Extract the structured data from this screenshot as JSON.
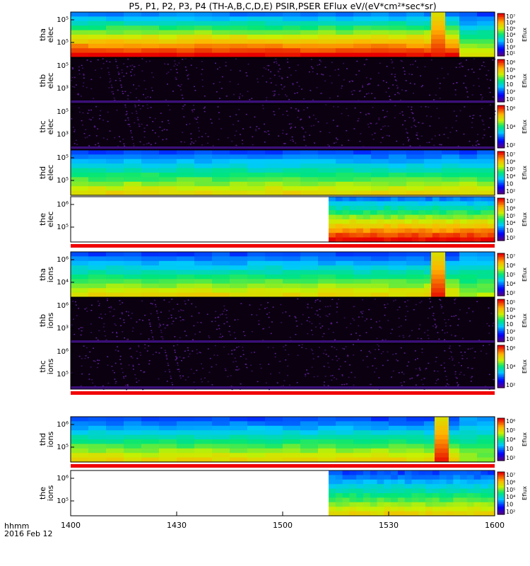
{
  "title": "P5, P1, P2, P3, P4 (TH-A,B,C,D,E) PSIR,PSER EFlux eV/(eV*cm²*sec*sr)",
  "footer": {
    "time_format": "hhmm",
    "date": "2016 Feb 12"
  },
  "chart_data": {
    "type": "heatmap",
    "x_ticks": [
      "1400",
      "1430",
      "1500",
      "1530",
      "1600"
    ],
    "x_range": [
      "14:00",
      "16:00"
    ],
    "colorbar_label": "Eflux",
    "panels": [
      {
        "id": "tha-elec",
        "ylabel": [
          "tha",
          "elec"
        ],
        "yticks": [
          "10⁵",
          "10⁵"
        ],
        "cbar_ticks": [
          "10⁷",
          "10⁶",
          "10⁵",
          "10⁴",
          "10⁳",
          "10²",
          "10¹"
        ],
        "pattern": "high",
        "data_start_min": 0,
        "data_end_min": 120,
        "burst_min": [
          102,
          106
        ],
        "change_min": 106,
        "after": "mid",
        "strip": "yellow"
      },
      {
        "id": "thb-elec",
        "ylabel": [
          "thb",
          "elec"
        ],
        "yticks": [
          "10⁵",
          "10³"
        ],
        "cbar_ticks": [
          "10⁶",
          "10⁵",
          "10⁴",
          "10⁳",
          "10²",
          "10¹"
        ],
        "pattern": "noise",
        "data_start_min": 0,
        "data_end_min": 120
      },
      {
        "id": "thc-elec",
        "ylabel": [
          "thc",
          "elec"
        ],
        "yticks": [
          "10⁵",
          "10³"
        ],
        "cbar_ticks": [
          "10⁶",
          "10⁴",
          "10²"
        ],
        "pattern": "noise",
        "data_start_min": 0,
        "data_end_min": 120
      },
      {
        "id": "thd-elec",
        "ylabel": [
          "thd",
          "elec"
        ],
        "yticks": [
          "10⁵",
          "10⁵"
        ],
        "cbar_ticks": [
          "10⁷",
          "10⁶",
          "10⁵",
          "10⁴",
          "10⁳",
          "10²"
        ],
        "pattern": "mid",
        "data_start_min": 0,
        "data_end_min": 120,
        "burst_min": [
          154,
          158
        ],
        "change_min": 158,
        "after": "low"
      },
      {
        "id": "the-elec",
        "ylabel": [
          "the",
          "elec"
        ],
        "yticks": [
          "10⁶",
          "10⁵"
        ],
        "cbar_ticks": [
          "10⁷",
          "10⁶",
          "10⁵",
          "10⁴",
          "10⁳",
          "10²"
        ],
        "pattern": "high",
        "data_start_min": 73,
        "data_end_min": 120,
        "strip": "red"
      },
      {
        "id": "tha-ions",
        "ylabel": [
          "tha",
          "ions"
        ],
        "yticks": [
          "10⁶",
          "10⁴"
        ],
        "cbar_ticks": [
          "10⁷",
          "10⁶",
          "10⁵",
          "10⁴",
          "10²"
        ],
        "pattern": "mid",
        "data_start_min": 0,
        "data_end_min": 120,
        "burst_min": [
          102,
          106
        ],
        "change_min": 106,
        "after": "low",
        "strip": "yellow"
      },
      {
        "id": "thb-ions",
        "ylabel": [
          "thb",
          "ions"
        ],
        "yticks": [
          "10⁶",
          "10³"
        ],
        "cbar_ticks": [
          "10⁵",
          "10⁵",
          "10⁴",
          "10⁳",
          "10²",
          "10¹"
        ],
        "pattern": "noise",
        "data_start_min": 0,
        "data_end_min": 120,
        "strip": "yellow"
      },
      {
        "id": "thc-ions",
        "ylabel": [
          "thc",
          "ions"
        ],
        "yticks": [
          "10⁶",
          "10⁵"
        ],
        "cbar_ticks": [
          "10⁶",
          "10⁴",
          "10²"
        ],
        "pattern": "noise",
        "data_start_min": 0,
        "data_end_min": 120,
        "strip": "red"
      },
      {
        "id": "thd-ions",
        "ylabel": [
          "thd",
          "ions"
        ],
        "yticks": [
          "10⁶",
          "10⁵"
        ],
        "cbar_ticks": [
          "10⁶",
          "10⁵",
          "10⁴",
          "10⁳",
          "10²"
        ],
        "pattern": "mid",
        "data_start_min": 0,
        "data_end_min": 120,
        "burst_min": [
          103,
          107
        ],
        "change_min": 107,
        "after": "low",
        "strip": "red"
      },
      {
        "id": "the-ions",
        "ylabel": [
          "the",
          "ions"
        ],
        "yticks": [
          "10⁶",
          "10⁵"
        ],
        "cbar_ticks": [
          "10⁷",
          "10⁶",
          "10⁵",
          "10⁴",
          "10⁳",
          "10²"
        ],
        "pattern": "mid",
        "data_start_min": 73,
        "data_end_min": 120
      }
    ]
  }
}
